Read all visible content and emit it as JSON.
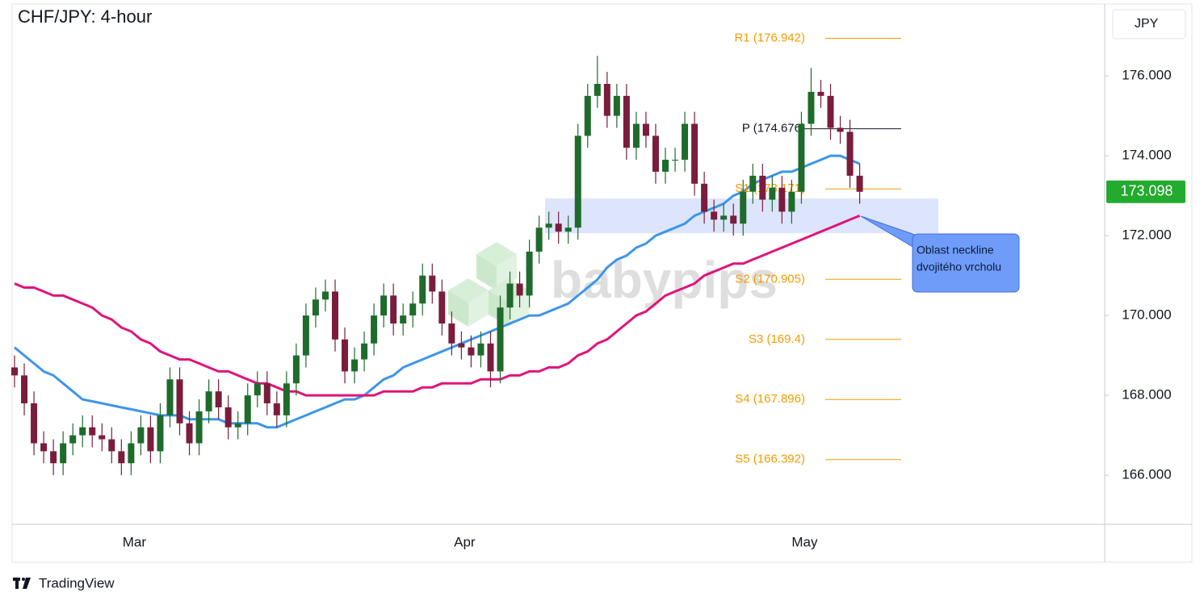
{
  "chart_data": {
    "type": "candlestick",
    "title": "CHF/JPY: 4-hour",
    "currency": "JPY",
    "watermark": "babypips",
    "brand": "TradingView",
    "ylim": [
      164.77,
      177.8
    ],
    "yticks": [
      {
        "value": 166,
        "label": "166.000"
      },
      {
        "value": 168,
        "label": "168.000"
      },
      {
        "value": 170,
        "label": "170.000"
      },
      {
        "value": 172,
        "label": "172.000"
      },
      {
        "value": 174,
        "label": "174.000"
      },
      {
        "value": 176,
        "label": "176.000"
      }
    ],
    "categories": [
      null,
      null,
      null,
      null,
      null,
      null,
      null,
      null,
      null,
      null,
      null,
      null,
      "Mar",
      null,
      null,
      null,
      null,
      null,
      null,
      null,
      null,
      null,
      null,
      null,
      null,
      null,
      null,
      null,
      null,
      null,
      null,
      null,
      null,
      null,
      null,
      null,
      null,
      null,
      null,
      null,
      null,
      null,
      null,
      null,
      null,
      null,
      "Apr",
      null,
      null,
      null,
      null,
      null,
      null,
      null,
      null,
      null,
      null,
      null,
      null,
      null,
      null,
      null,
      null,
      null,
      null,
      null,
      null,
      null,
      null,
      null,
      null,
      null,
      null,
      null,
      null,
      null,
      null,
      null,
      null,
      null,
      null,
      "May",
      null,
      null,
      null,
      null,
      null,
      null
    ],
    "up_color": "#1e6b2c",
    "down_color": "#7a1d3c",
    "open": [
      168.7,
      168.5,
      167.8,
      166.8,
      166.6,
      166.3,
      166.8,
      167.0,
      167.2,
      167.0,
      166.9,
      166.6,
      166.3,
      166.8,
      167.2,
      166.6,
      167.5,
      168.4,
      167.3,
      166.8,
      167.6,
      168.1,
      167.7,
      167.2,
      167.3,
      168.0,
      168.3,
      167.8,
      167.5,
      168.3,
      169.0,
      170.0,
      170.4,
      170.6,
      169.4,
      168.6,
      168.9,
      169.3,
      170.0,
      170.5,
      169.8,
      170.0,
      170.3,
      171.0,
      170.6,
      169.8,
      169.3,
      169.2,
      169.0,
      169.3,
      168.6,
      170.2,
      170.8,
      170.5,
      171.6,
      172.2,
      172.3,
      172.1,
      172.2,
      174.5,
      175.5,
      175.8,
      175.0,
      175.5,
      174.2,
      174.8,
      174.5,
      173.6,
      173.9,
      173.9,
      174.8,
      173.3,
      172.6,
      172.4,
      172.5,
      172.3,
      173.1,
      173.5,
      172.9,
      173.2,
      172.6,
      173.1,
      174.8,
      175.6,
      175.5,
      174.7,
      174.6,
      173.5
    ],
    "high": [
      169.0,
      168.8,
      168.1,
      167.1,
      166.9,
      167.1,
      167.3,
      167.5,
      167.5,
      167.3,
      167.2,
      166.9,
      167.1,
      167.5,
      167.5,
      167.8,
      168.7,
      168.7,
      167.6,
      167.9,
      168.4,
      168.4,
      168.0,
      167.6,
      168.3,
      168.6,
      168.6,
      168.1,
      168.6,
      169.3,
      170.3,
      170.7,
      170.9,
      170.9,
      169.7,
      169.2,
      169.6,
      170.3,
      170.8,
      170.8,
      170.3,
      170.6,
      171.3,
      171.3,
      170.9,
      170.1,
      169.6,
      169.5,
      169.6,
      169.6,
      170.5,
      171.1,
      171.1,
      171.9,
      172.5,
      172.6,
      172.6,
      172.5,
      174.8,
      175.8,
      176.5,
      176.1,
      175.8,
      175.8,
      175.1,
      175.1,
      174.8,
      174.2,
      174.2,
      175.1,
      175.1,
      173.6,
      172.9,
      172.8,
      172.8,
      173.4,
      173.8,
      173.8,
      173.5,
      173.5,
      173.4,
      175.1,
      176.2,
      175.9,
      175.8,
      175.0,
      174.9,
      173.8
    ],
    "low": [
      168.2,
      167.5,
      166.5,
      166.3,
      166.0,
      166.0,
      166.5,
      166.7,
      166.7,
      166.6,
      166.3,
      166.0,
      166.0,
      166.5,
      166.3,
      166.3,
      167.2,
      167.0,
      166.5,
      166.5,
      167.3,
      167.4,
      166.9,
      166.9,
      167.0,
      167.7,
      167.5,
      167.2,
      167.2,
      168.0,
      168.7,
      169.7,
      170.1,
      169.1,
      168.3,
      168.3,
      168.6,
      169.0,
      169.7,
      169.5,
      169.5,
      169.7,
      170.0,
      170.3,
      169.5,
      169.0,
      168.9,
      168.7,
      168.7,
      168.2,
      168.3,
      169.9,
      170.2,
      170.2,
      171.3,
      171.9,
      171.8,
      171.8,
      171.9,
      174.2,
      175.2,
      174.7,
      174.7,
      173.9,
      173.9,
      174.2,
      173.3,
      173.3,
      173.6,
      173.6,
      173.0,
      172.3,
      172.1,
      172.1,
      172.0,
      172.0,
      172.8,
      172.6,
      172.6,
      172.3,
      172.3,
      172.8,
      174.5,
      175.2,
      174.4,
      174.3,
      173.2,
      172.8
    ],
    "close": [
      168.5,
      167.8,
      166.8,
      166.6,
      166.3,
      166.8,
      167.0,
      167.2,
      167.0,
      166.9,
      166.6,
      166.3,
      166.8,
      167.2,
      166.6,
      167.5,
      168.4,
      167.3,
      166.8,
      167.6,
      168.1,
      167.7,
      167.2,
      167.3,
      168.0,
      168.3,
      167.8,
      167.5,
      168.3,
      169.0,
      170.0,
      170.4,
      170.6,
      169.4,
      168.6,
      168.9,
      169.3,
      170.0,
      170.5,
      169.8,
      170.0,
      170.3,
      171.0,
      170.6,
      169.8,
      169.3,
      169.2,
      169.0,
      169.3,
      168.6,
      170.2,
      170.8,
      170.5,
      171.6,
      172.2,
      172.3,
      172.1,
      172.2,
      174.5,
      175.5,
      175.8,
      175.0,
      175.5,
      174.2,
      174.8,
      174.5,
      173.6,
      173.9,
      173.9,
      174.8,
      173.3,
      172.6,
      172.4,
      172.5,
      172.3,
      173.1,
      173.5,
      172.9,
      173.2,
      172.6,
      173.1,
      174.8,
      175.6,
      175.5,
      174.7,
      174.6,
      173.5,
      173.098
    ],
    "last_price": {
      "value": 173.098,
      "label": "173.098",
      "color": "#22ab2e"
    },
    "ma": [
      {
        "color": "#3d95ea",
        "values": [
          169.2,
          169.0,
          168.8,
          168.6,
          168.5,
          168.3,
          168.1,
          167.9,
          167.85,
          167.8,
          167.75,
          167.7,
          167.65,
          167.6,
          167.55,
          167.5,
          167.5,
          167.5,
          167.4,
          167.4,
          167.4,
          167.4,
          167.3,
          167.3,
          167.3,
          167.3,
          167.2,
          167.2,
          167.3,
          167.4,
          167.5,
          167.6,
          167.7,
          167.8,
          167.9,
          167.9,
          168.0,
          168.2,
          168.4,
          168.5,
          168.7,
          168.8,
          168.9,
          169.0,
          169.1,
          169.2,
          169.3,
          169.4,
          169.5,
          169.6,
          169.7,
          169.8,
          169.9,
          170.0,
          170.0,
          170.1,
          170.2,
          170.3,
          170.5,
          170.7,
          170.9,
          171.2,
          171.4,
          171.5,
          171.7,
          171.8,
          172.0,
          172.1,
          172.2,
          172.3,
          172.5,
          172.6,
          172.7,
          172.8,
          173.0,
          173.1,
          173.3,
          173.4,
          173.5,
          173.6,
          173.6,
          173.7,
          173.8,
          173.9,
          174.0,
          174.0,
          173.9,
          173.8
        ]
      },
      {
        "color": "#e0147a",
        "values": [
          170.8,
          170.7,
          170.7,
          170.6,
          170.5,
          170.5,
          170.4,
          170.3,
          170.2,
          170.0,
          169.9,
          169.7,
          169.6,
          169.4,
          169.3,
          169.1,
          169.0,
          168.9,
          168.9,
          168.8,
          168.7,
          168.6,
          168.6,
          168.5,
          168.4,
          168.3,
          168.3,
          168.2,
          168.1,
          168.1,
          168.0,
          168.0,
          168.0,
          168.0,
          168.0,
          168.0,
          168.0,
          168.0,
          168.1,
          168.1,
          168.1,
          168.1,
          168.2,
          168.2,
          168.3,
          168.3,
          168.3,
          168.3,
          168.4,
          168.4,
          168.4,
          168.5,
          168.5,
          168.6,
          168.6,
          168.7,
          168.7,
          168.8,
          169.0,
          169.1,
          169.3,
          169.4,
          169.6,
          169.8,
          170.0,
          170.1,
          170.3,
          170.5,
          170.6,
          170.7,
          170.8,
          171.0,
          171.1,
          171.2,
          171.3,
          171.3,
          171.4,
          171.5,
          171.6,
          171.7,
          171.8,
          171.9,
          172.0,
          172.1,
          172.2,
          172.3,
          172.4,
          172.5
        ]
      }
    ],
    "pivots": [
      {
        "label": "R1 (176.942)",
        "value": 176.942,
        "color": "#f59b00"
      },
      {
        "label": "P (174.676)",
        "value": 174.676,
        "color": "#131722"
      },
      {
        "label": "S1 (173.171)",
        "value": 173.171,
        "color": "#f59b00"
      },
      {
        "label": "S2 (170.905)",
        "value": 170.905,
        "color": "#f59b00"
      },
      {
        "label": "S3 (169.4)",
        "value": 169.4,
        "color": "#f59b00"
      },
      {
        "label": "S4 (167.896)",
        "value": 167.896,
        "color": "#f59b00"
      },
      {
        "label": "S5 (166.392)",
        "value": 166.392,
        "color": "#f59b00"
      }
    ],
    "zone": {
      "low": 172.06,
      "high": 172.93,
      "color": "#d6e1fb"
    },
    "annotation": {
      "lines": [
        "Oblast neckline",
        "dvojitého vrcholu"
      ],
      "color": "#6f9cf8"
    }
  }
}
